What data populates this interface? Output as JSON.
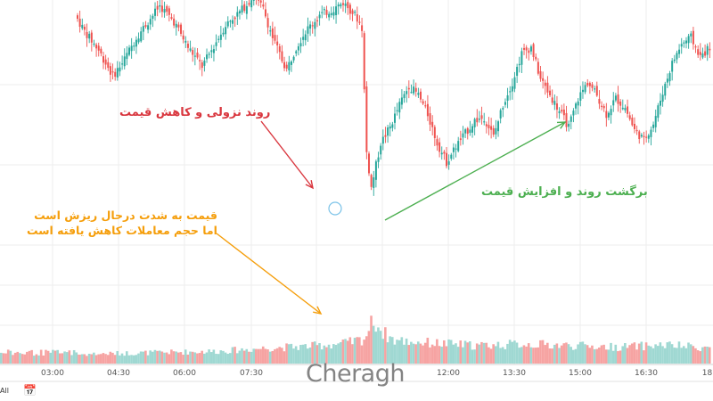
{
  "chart_data": {
    "type": "candlestick",
    "x_ticks": [
      "03:00",
      "04:30",
      "06:00",
      "07:30",
      "12:00",
      "13:30",
      "15:00",
      "16:30"
    ],
    "partial_tick": "18:",
    "annotations": {
      "downtrend": "روند نزولی و کاهش قیمت",
      "uptrend": "برگشت روند و افزایش قیمت",
      "volume_line1": "قیمت به شدت درحال ریزش است",
      "volume_line2": "اما حجم معاملات کاهش یافته است"
    },
    "colors": {
      "up": "#26a69a",
      "down": "#ef5350",
      "vol_up": "#9fd8d2",
      "vol_down": "#f6a3a2",
      "annot_down": "#d9363e",
      "annot_up": "#4caf50",
      "annot_vol": "#f59e0b",
      "grid": "#eeeeee"
    },
    "price_anchors": [
      [
        0,
        98
      ],
      [
        4,
        93
      ],
      [
        10,
        87
      ],
      [
        16,
        79
      ],
      [
        20,
        83
      ],
      [
        26,
        91
      ],
      [
        30,
        95
      ],
      [
        36,
        101
      ],
      [
        42,
        96
      ],
      [
        48,
        88
      ],
      [
        54,
        82
      ],
      [
        58,
        87
      ],
      [
        64,
        95
      ],
      [
        70,
        99
      ],
      [
        76,
        104
      ],
      [
        80,
        100
      ],
      [
        84,
        91
      ],
      [
        88,
        84
      ],
      [
        90,
        81
      ],
      [
        94,
        88
      ],
      [
        98,
        93
      ],
      [
        104,
        98
      ],
      [
        110,
        100
      ],
      [
        114,
        102
      ],
      [
        118,
        99
      ],
      [
        120,
        97
      ],
      [
        122,
        94
      ],
      [
        124,
        55
      ],
      [
        126,
        44
      ],
      [
        130,
        58
      ],
      [
        134,
        63
      ],
      [
        138,
        70
      ],
      [
        142,
        76
      ],
      [
        146,
        73
      ],
      [
        150,
        67
      ],
      [
        154,
        58
      ],
      [
        158,
        52
      ],
      [
        162,
        57
      ],
      [
        166,
        61
      ],
      [
        170,
        65
      ],
      [
        174,
        66
      ],
      [
        178,
        60
      ],
      [
        182,
        70
      ],
      [
        186,
        77
      ],
      [
        190,
        86
      ],
      [
        194,
        88
      ],
      [
        198,
        78
      ],
      [
        202,
        73
      ],
      [
        206,
        68
      ],
      [
        210,
        63
      ],
      [
        214,
        72
      ],
      [
        218,
        77
      ],
      [
        222,
        73
      ],
      [
        226,
        67
      ],
      [
        230,
        72
      ],
      [
        234,
        69
      ],
      [
        238,
        62
      ],
      [
        242,
        59
      ],
      [
        246,
        64
      ],
      [
        250,
        74
      ],
      [
        254,
        83
      ],
      [
        258,
        89
      ],
      [
        262,
        91
      ],
      [
        266,
        85
      ],
      [
        270,
        88
      ]
    ],
    "volume_anchors": [
      [
        0,
        0.18
      ],
      [
        20,
        0.2
      ],
      [
        40,
        0.22
      ],
      [
        60,
        0.24
      ],
      [
        80,
        0.3
      ],
      [
        100,
        0.34
      ],
      [
        115,
        0.4
      ],
      [
        122,
        0.48
      ],
      [
        126,
        0.85
      ],
      [
        130,
        0.6
      ],
      [
        135,
        0.45
      ],
      [
        150,
        0.4
      ],
      [
        170,
        0.35
      ],
      [
        190,
        0.38
      ],
      [
        210,
        0.35
      ],
      [
        230,
        0.32
      ],
      [
        250,
        0.36
      ],
      [
        270,
        0.3
      ]
    ]
  },
  "watermark": "Cheragh",
  "toolbar": {
    "label": "All",
    "icon": "calendar-goto-icon"
  }
}
